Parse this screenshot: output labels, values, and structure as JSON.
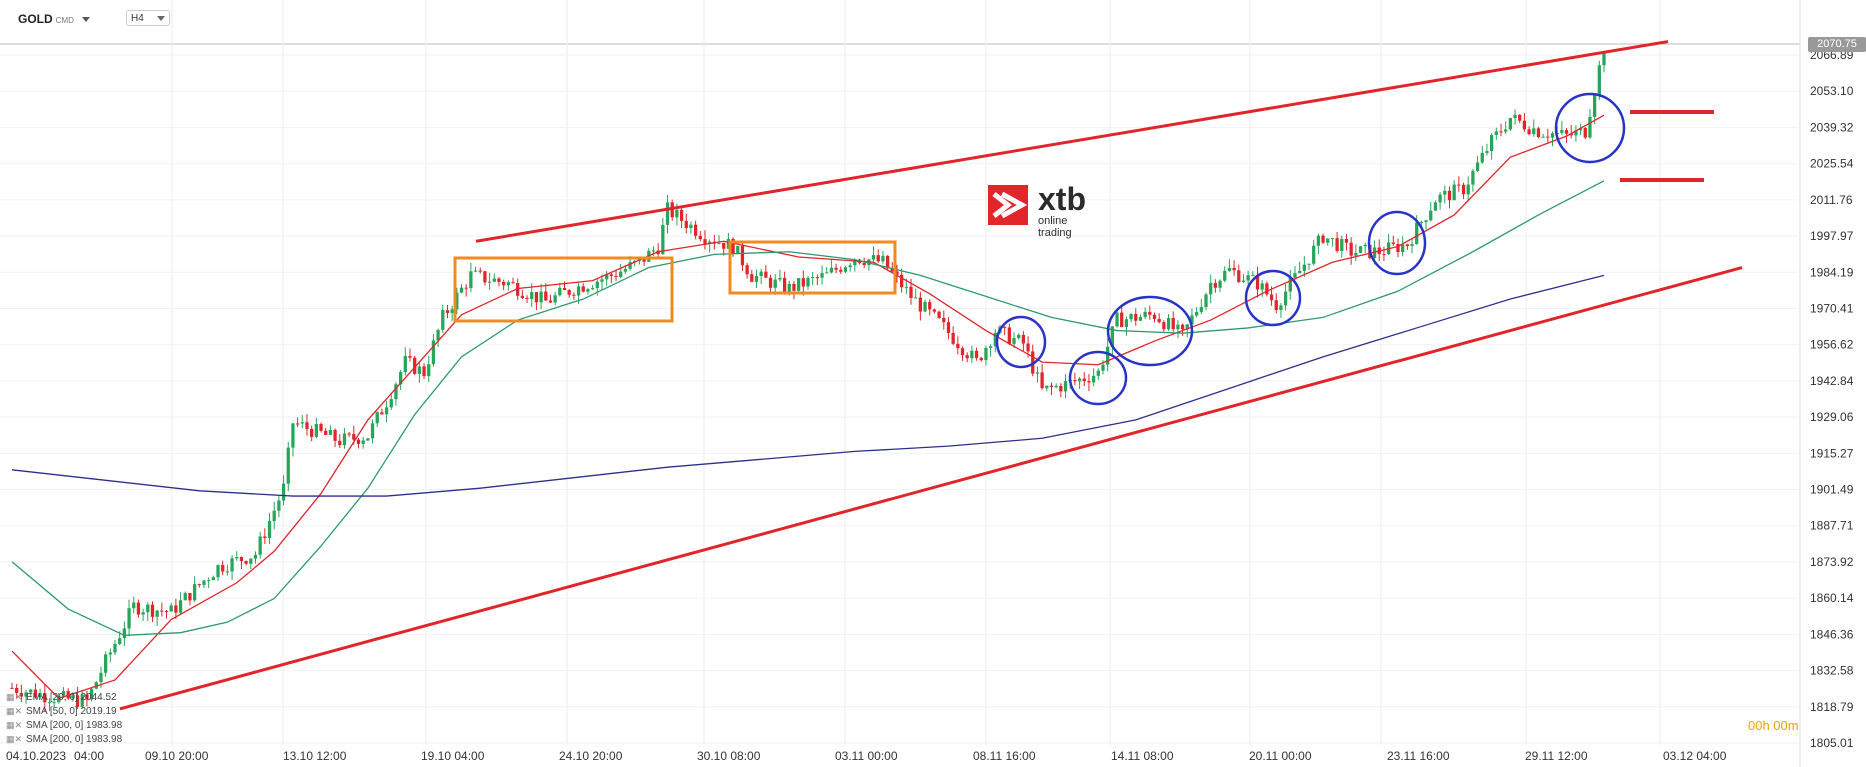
{
  "toolbar": {
    "symbol": "GOLD",
    "symbol_suffix": "CMD",
    "timeframe": "H4"
  },
  "logo": {
    "word": "xtb",
    "tagline": "online trading"
  },
  "price": {
    "current": "2070.75",
    "countdown": "00h 00m"
  },
  "legend": [
    {
      "icon": "eye-x-icon",
      "text": "EMA [20, 0] 2044.52"
    },
    {
      "icon": "eye-x-icon",
      "text": "SMA [50, 0] 2019.19"
    },
    {
      "icon": "eye-x-icon",
      "text": "SMA [200, 0] 1983.98"
    },
    {
      "icon": "eye-x-icon",
      "text": "SMA [200, 0] 1983.98"
    }
  ],
  "colors": {
    "up": "#26a65b",
    "down": "#e0252b",
    "ema20": "#e0252b",
    "sma50": "#2e9a6a",
    "sma200": "#2c2f8c",
    "trend": "#e0252b",
    "box": "#f08a24",
    "circle": "#2833c8"
  },
  "chart_data": {
    "type": "candlestick",
    "title": "",
    "xlabel": "",
    "ylabel": "",
    "ylim": [
      1805.01,
      2074
    ],
    "y_ticks": [
      "2066.89",
      "2053.10",
      "2039.32",
      "2025.54",
      "2011.76",
      "1997.97",
      "1984.19",
      "1970.41",
      "1956.62",
      "1942.84",
      "1929.06",
      "1915.27",
      "1901.49",
      "1887.71",
      "1873.92",
      "1860.14",
      "1846.36",
      "1832.58",
      "1818.79",
      "1805.01"
    ],
    "x_ticks": [
      "04.10.2023",
      "04:00",
      "09.10 20:00",
      "13.10 12:00",
      "19.10 04:00",
      "24.10 20:00",
      "30.10 08:00",
      "03.11 00:00",
      "08.11 16:00",
      "14.11 08:00",
      "20.11 00:00",
      "23.11 16:00",
      "29.11 12:00",
      "03.12 04:00"
    ],
    "anchors": [
      [
        0,
        1826
      ],
      [
        10,
        1822
      ],
      [
        16,
        1821
      ],
      [
        20,
        1836
      ],
      [
        26,
        1857
      ],
      [
        34,
        1855
      ],
      [
        44,
        1872
      ],
      [
        52,
        1877
      ],
      [
        58,
        1902
      ],
      [
        60,
        1927
      ],
      [
        70,
        1920
      ],
      [
        76,
        1922
      ],
      [
        80,
        1935
      ],
      [
        84,
        1950
      ],
      [
        88,
        1946
      ],
      [
        92,
        1967
      ],
      [
        98,
        1983
      ],
      [
        106,
        1980
      ],
      [
        114,
        1973
      ],
      [
        120,
        1978
      ],
      [
        128,
        1983
      ],
      [
        134,
        1988
      ],
      [
        138,
        1994
      ],
      [
        140,
        2008
      ],
      [
        148,
        1998
      ],
      [
        154,
        1994
      ],
      [
        158,
        1983
      ],
      [
        166,
        1978
      ],
      [
        174,
        1983
      ],
      [
        180,
        1990
      ],
      [
        186,
        1988
      ],
      [
        192,
        1975
      ],
      [
        198,
        1965
      ],
      [
        206,
        1950
      ],
      [
        210,
        1962
      ],
      [
        216,
        1957
      ],
      [
        220,
        1939
      ],
      [
        226,
        1942
      ],
      [
        232,
        1946
      ],
      [
        236,
        1966
      ],
      [
        244,
        1968
      ],
      [
        250,
        1960
      ],
      [
        256,
        1980
      ],
      [
        260,
        1985
      ],
      [
        266,
        1980
      ],
      [
        270,
        1972
      ],
      [
        274,
        1982
      ],
      [
        280,
        1998
      ],
      [
        286,
        1992
      ],
      [
        292,
        1992
      ],
      [
        298,
        1995
      ],
      [
        304,
        2012
      ],
      [
        310,
        2016
      ],
      [
        316,
        2034
      ],
      [
        320,
        2043
      ],
      [
        326,
        2038
      ],
      [
        332,
        2036
      ],
      [
        336,
        2038
      ],
      [
        340,
        2070
      ]
    ],
    "series": [
      {
        "name": "EMA [20, 0]",
        "values": [
          [
            0,
            1840
          ],
          [
            10,
            1822
          ],
          [
            22,
            1829
          ],
          [
            34,
            1852
          ],
          [
            48,
            1866
          ],
          [
            56,
            1878
          ],
          [
            66,
            1900
          ],
          [
            76,
            1928
          ],
          [
            86,
            1948
          ],
          [
            96,
            1968
          ],
          [
            108,
            1978
          ],
          [
            124,
            1981
          ],
          [
            138,
            1992
          ],
          [
            152,
            1996
          ],
          [
            168,
            1990
          ],
          [
            184,
            1988
          ],
          [
            196,
            1976
          ],
          [
            208,
            1962
          ],
          [
            220,
            1950
          ],
          [
            232,
            1949
          ],
          [
            244,
            1958
          ],
          [
            256,
            1966
          ],
          [
            268,
            1977
          ],
          [
            282,
            1988
          ],
          [
            296,
            1994
          ],
          [
            308,
            2006
          ],
          [
            320,
            2028
          ],
          [
            332,
            2036
          ],
          [
            340,
            2044
          ]
        ]
      },
      {
        "name": "SMA [50, 0]",
        "values": [
          [
            0,
            1874
          ],
          [
            12,
            1856
          ],
          [
            24,
            1846
          ],
          [
            36,
            1847
          ],
          [
            46,
            1851
          ],
          [
            56,
            1860
          ],
          [
            66,
            1880
          ],
          [
            76,
            1902
          ],
          [
            86,
            1930
          ],
          [
            96,
            1952
          ],
          [
            108,
            1966
          ],
          [
            122,
            1974
          ],
          [
            136,
            1986
          ],
          [
            150,
            1991
          ],
          [
            166,
            1992
          ],
          [
            180,
            1989
          ],
          [
            194,
            1983
          ],
          [
            208,
            1975
          ],
          [
            222,
            1967
          ],
          [
            236,
            1962
          ],
          [
            250,
            1961
          ],
          [
            264,
            1963
          ],
          [
            280,
            1967
          ],
          [
            296,
            1977
          ],
          [
            312,
            1992
          ],
          [
            326,
            2006
          ],
          [
            340,
            2019
          ]
        ]
      },
      {
        "name": "SMA [200, 0]",
        "values": [
          [
            0,
            1909
          ],
          [
            20,
            1905
          ],
          [
            40,
            1901
          ],
          [
            60,
            1899
          ],
          [
            80,
            1899
          ],
          [
            100,
            1902
          ],
          [
            120,
            1906
          ],
          [
            140,
            1910
          ],
          [
            160,
            1913
          ],
          [
            180,
            1916
          ],
          [
            200,
            1918
          ],
          [
            220,
            1921
          ],
          [
            240,
            1928
          ],
          [
            260,
            1940
          ],
          [
            280,
            1952
          ],
          [
            300,
            1963
          ],
          [
            320,
            1974
          ],
          [
            340,
            1983
          ]
        ]
      }
    ]
  }
}
